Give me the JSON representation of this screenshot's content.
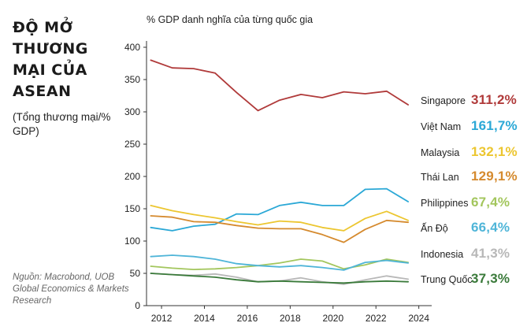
{
  "title": "ĐỘ MỞ THƯƠNG MẠI CỦA ASEAN",
  "subtitle": "(Tổng thương mại/% GDP)",
  "source": "Nguồn: Macrobond, UOB Global Economics & Markets Research",
  "chart_data": {
    "type": "line",
    "title": "ĐỘ MỞ THƯƠNG MẠI CỦA ASEAN",
    "ylabel": "% GDP danh nghĩa của từng quốc gia",
    "xlabel": "",
    "ylim": [
      0,
      400
    ],
    "xlim": [
      2011.3,
      2024.6
    ],
    "yticks": [
      0,
      50,
      100,
      150,
      200,
      250,
      300,
      350,
      400
    ],
    "xticks": [
      2012,
      2014,
      2016,
      2018,
      2020,
      2022,
      2024
    ],
    "x": [
      2011.5,
      2012.5,
      2013.5,
      2014.5,
      2015.5,
      2016.5,
      2017.5,
      2018.5,
      2019.5,
      2020.5,
      2021.5,
      2022.5,
      2023.5
    ],
    "legend_position": "right",
    "series": [
      {
        "name": "Singapore",
        "label": "311,2%",
        "color": "#b03a3a",
        "values": [
          380,
          368,
          367,
          360,
          330,
          302,
          318,
          327,
          322,
          331,
          328,
          332,
          311
        ]
      },
      {
        "name": "Việt Nam",
        "label": "161,7%",
        "color": "#2ba8d6",
        "values": [
          121,
          116,
          123,
          126,
          142,
          141,
          155,
          160,
          155,
          155,
          180,
          181,
          161
        ]
      },
      {
        "name": "Malaysia",
        "label": "132,1%",
        "color": "#ecc630",
        "values": [
          155,
          147,
          141,
          136,
          130,
          125,
          131,
          129,
          121,
          116,
          135,
          146,
          132
        ]
      },
      {
        "name": "Thái Lan",
        "label": "129,1%",
        "color": "#d58a2e",
        "values": [
          139,
          137,
          130,
          129,
          124,
          120,
          119,
          119,
          110,
          98,
          118,
          132,
          129
        ]
      },
      {
        "name": "Philippines",
        "label": "67,4%",
        "color": "#a3c65d",
        "values": [
          61,
          58,
          56,
          57,
          59,
          62,
          66,
          72,
          69,
          57,
          63,
          72,
          67
        ]
      },
      {
        "name": "Ấn Độ",
        "label": "66,4%",
        "color": "#4fb5d8",
        "values": [
          76,
          78,
          76,
          72,
          65,
          62,
          60,
          62,
          59,
          55,
          67,
          70,
          66
        ]
      },
      {
        "name": "Indonesia",
        "label": "41,3%",
        "color": "#b8b8b8",
        "values": [
          50,
          48,
          47,
          49,
          44,
          37,
          38,
          43,
          37,
          33,
          40,
          46,
          41
        ]
      },
      {
        "name": "Trung Quốc",
        "label": "37,3%",
        "color": "#3a7a3a",
        "values": [
          50,
          48,
          46,
          44,
          40,
          37,
          38,
          37,
          36,
          35,
          37,
          38,
          37
        ]
      }
    ]
  }
}
